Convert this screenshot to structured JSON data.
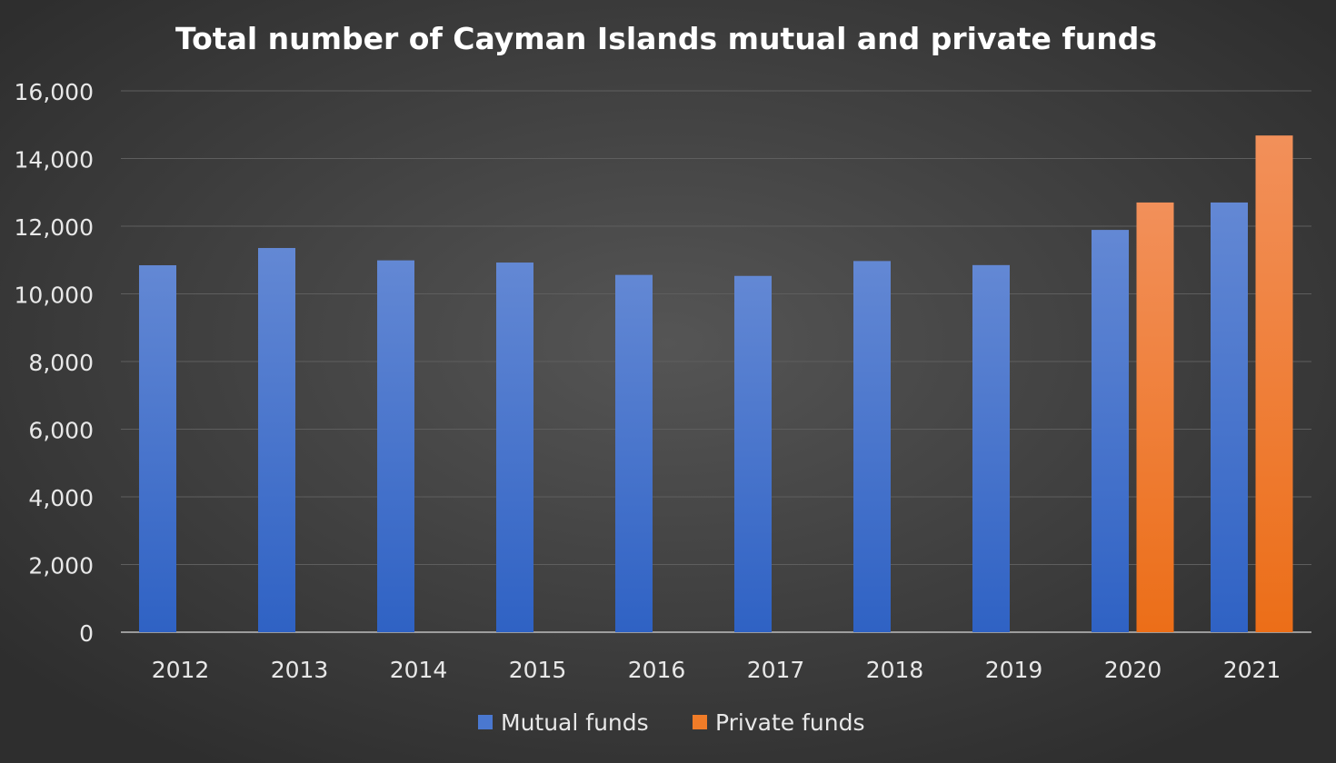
{
  "chart_data": {
    "type": "bar",
    "title": "Total number of Cayman Islands mutual and private funds",
    "xlabel": "",
    "ylabel": "",
    "categories": [
      "2012",
      "2013",
      "2014",
      "2015",
      "2016",
      "2017",
      "2018",
      "2019",
      "2020",
      "2021"
    ],
    "series": [
      {
        "name": "Mutual funds",
        "color": "#4a78d0",
        "values": [
          10845,
          11355,
          10990,
          10925,
          10560,
          10530,
          10970,
          10850,
          11890,
          12700
        ]
      },
      {
        "name": "Private funds",
        "color": "#f07c28",
        "values": [
          null,
          null,
          null,
          null,
          null,
          null,
          null,
          null,
          12700,
          14680
        ]
      }
    ],
    "ylim": [
      0,
      16000
    ],
    "yticks": [
      0,
      2000,
      4000,
      6000,
      8000,
      10000,
      12000,
      14000,
      16000
    ],
    "ytick_labels": [
      "0",
      "2,000",
      "4,000",
      "6,000",
      "8,000",
      "10,000",
      "12,000",
      "14,000",
      "16,000"
    ],
    "grid": true,
    "legend": "bottom",
    "background": "#3a3a3a"
  }
}
